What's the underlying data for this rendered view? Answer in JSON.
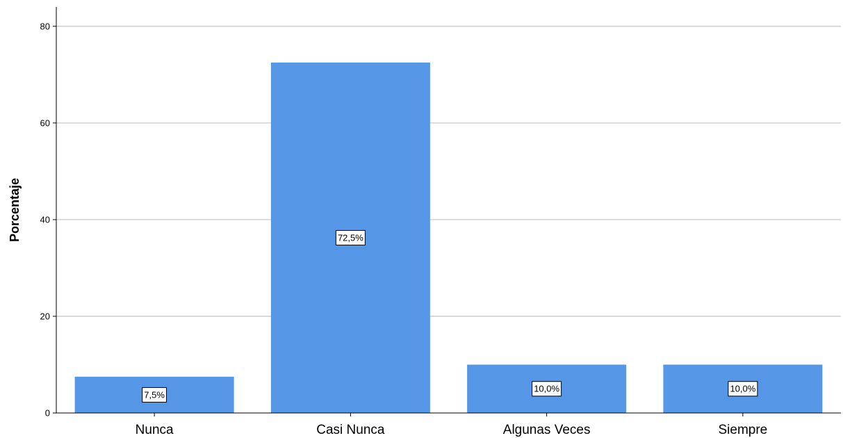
{
  "chart_data": {
    "type": "bar",
    "categories": [
      "Nunca",
      "Casi Nunca",
      "Algunas Veces",
      "Siempre"
    ],
    "values": [
      7.5,
      72.5,
      10.0,
      10.0
    ],
    "data_labels": [
      "7,5%",
      "72,5%",
      "10,0%",
      "10,0%"
    ],
    "title": "",
    "xlabel": "",
    "ylabel": "Porcentaje",
    "ylim": [
      0,
      84
    ],
    "yticks": [
      0,
      20,
      40,
      60,
      80
    ],
    "ytick_labels": [
      "0",
      "20",
      "40",
      "60",
      "80"
    ],
    "grid": "horizontal",
    "bar_color": "#5596e6",
    "grid_color": "#c8c8c8"
  }
}
